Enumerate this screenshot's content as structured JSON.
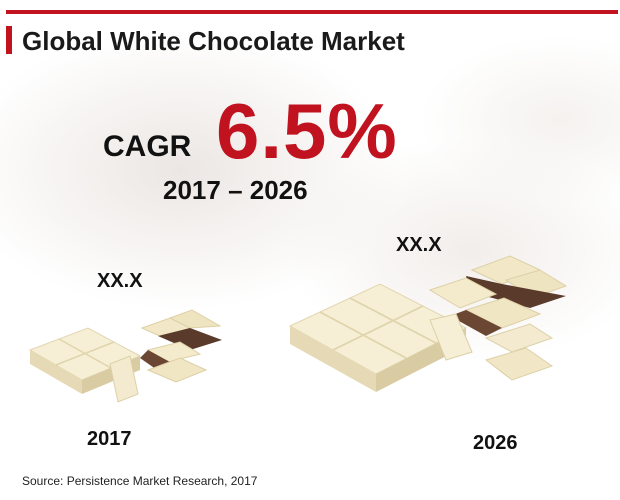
{
  "title": "Global White Chocolate Market",
  "cagr": {
    "label": "CAGR",
    "value": "6.5%",
    "period": "2017 – 2026"
  },
  "chart_data": {
    "type": "bar",
    "title": "Global White Chocolate Market",
    "categories": [
      "2017",
      "2026"
    ],
    "value_labels": [
      "XX.X",
      "XX.X"
    ],
    "note": "CAGR 6.5%"
  },
  "source": "Source: Persistence Market Research, 2017",
  "colors": {
    "accent": "#c1121f",
    "white_chocolate": "#f3ecd2",
    "milk_chocolate": "#5a3a2a"
  }
}
